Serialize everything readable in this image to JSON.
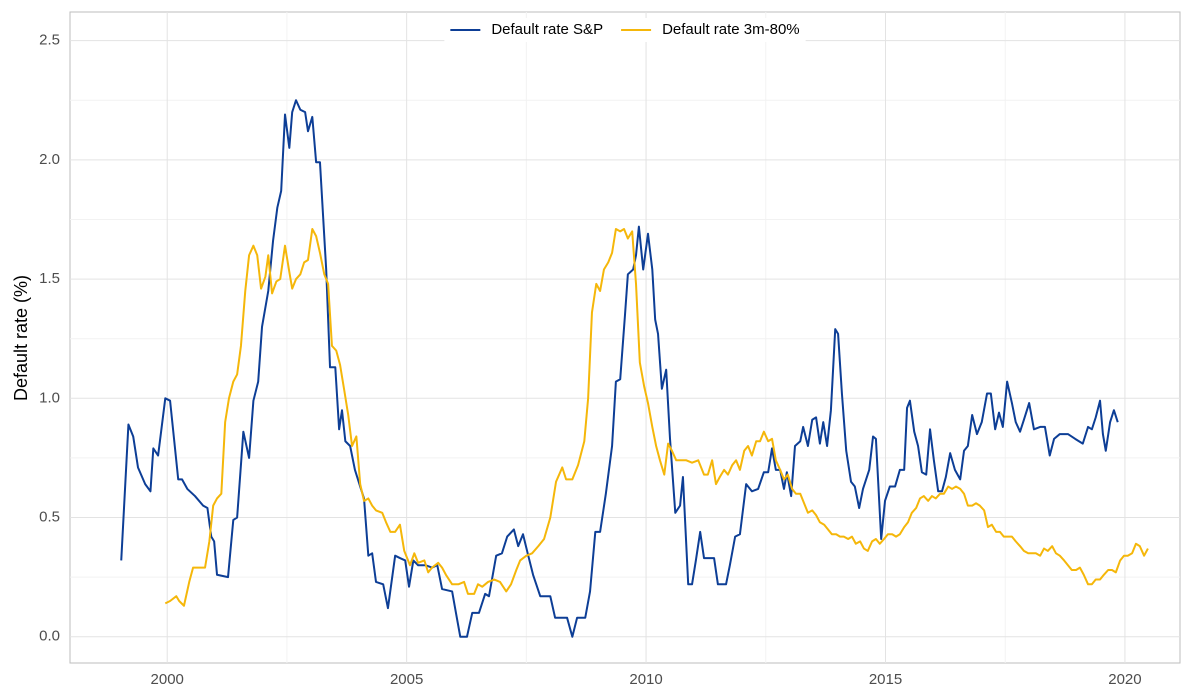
{
  "chart_data": {
    "type": "line",
    "y_label": "Default rate (%)",
    "xlim": [
      1997.97,
      2021.15
    ],
    "xticks": [
      2000,
      2005,
      2010,
      2015,
      2020
    ],
    "ylim": [
      -0.11,
      2.62
    ],
    "yticks": [
      0.0,
      0.5,
      1.0,
      1.5,
      2.0,
      2.5
    ],
    "y_tick_labels_fixed": 1,
    "grid": true,
    "legend": "top",
    "series": [
      {
        "name": "Default rate S&P",
        "color": "#0d3e96",
        "x": [
          1999.04,
          1999.19,
          1999.29,
          1999.39,
          1999.54,
          1999.65,
          1999.71,
          1999.81,
          1999.96,
          2000.06,
          2000.23,
          2000.31,
          2000.42,
          2000.58,
          2000.75,
          2000.84,
          2000.92,
          2000.98,
          2001.04,
          2001.27,
          2001.38,
          2001.46,
          2001.59,
          2001.71,
          2001.8,
          2001.9,
          2001.98,
          2002.11,
          2002.21,
          2002.3,
          2002.38,
          2002.46,
          2002.55,
          2002.61,
          2002.69,
          2002.78,
          2002.88,
          2002.94,
          2003.03,
          2003.11,
          2003.19,
          2003.32,
          2003.4,
          2003.51,
          2003.59,
          2003.65,
          2003.72,
          2003.82,
          2003.92,
          2004.03,
          2004.11,
          2004.2,
          2004.28,
          2004.36,
          2004.51,
          2004.61,
          2004.76,
          2004.86,
          2004.97,
          2005.05,
          2005.14,
          2005.24,
          2005.39,
          2005.53,
          2005.64,
          2005.74,
          2005.95,
          2006.03,
          2006.12,
          2006.26,
          2006.37,
          2006.51,
          2006.64,
          2006.72,
          2006.87,
          2006.99,
          2007.1,
          2007.24,
          2007.33,
          2007.43,
          2007.54,
          2007.64,
          2007.79,
          2008.0,
          2008.1,
          2008.35,
          2008.46,
          2008.56,
          2008.73,
          2008.83,
          2008.94,
          2009.04,
          2009.16,
          2009.29,
          2009.37,
          2009.46,
          2009.56,
          2009.62,
          2009.73,
          2009.79,
          2009.85,
          2009.94,
          2010.04,
          2010.13,
          2010.19,
          2010.25,
          2010.33,
          2010.42,
          2010.5,
          2010.61,
          2010.71,
          2010.77,
          2010.88,
          2010.96,
          2011.04,
          2011.13,
          2011.21,
          2011.42,
          2011.5,
          2011.67,
          2011.75,
          2011.86,
          2011.96,
          2012.09,
          2012.21,
          2012.34,
          2012.46,
          2012.55,
          2012.63,
          2012.71,
          2012.8,
          2012.88,
          2012.94,
          2013.03,
          2013.11,
          2013.22,
          2013.28,
          2013.38,
          2013.47,
          2013.55,
          2013.63,
          2013.7,
          2013.78,
          2013.86,
          2013.95,
          2014.01,
          2014.09,
          2014.18,
          2014.28,
          2014.36,
          2014.45,
          2014.53,
          2014.66,
          2014.74,
          2014.8,
          2014.91,
          2014.99,
          2015.09,
          2015.2,
          2015.3,
          2015.39,
          2015.45,
          2015.51,
          2015.6,
          2015.68,
          2015.76,
          2015.85,
          2015.93,
          2016.01,
          2016.1,
          2016.18,
          2016.26,
          2016.35,
          2016.45,
          2016.56,
          2016.64,
          2016.72,
          2016.81,
          2016.91,
          2017.01,
          2017.12,
          2017.2,
          2017.29,
          2017.37,
          2017.45,
          2017.54,
          2017.64,
          2017.72,
          2017.81,
          2017.89,
          2018.0,
          2018.1,
          2018.23,
          2018.33,
          2018.43,
          2018.52,
          2018.64,
          2018.81,
          2018.96,
          2019.12,
          2019.23,
          2019.31,
          2019.39,
          2019.48,
          2019.54,
          2019.6,
          2019.69,
          2019.77,
          2019.85
        ],
        "values": [
          0.32,
          0.89,
          0.84,
          0.71,
          0.64,
          0.61,
          0.79,
          0.76,
          1.0,
          0.99,
          0.66,
          0.66,
          0.62,
          0.59,
          0.55,
          0.54,
          0.42,
          0.4,
          0.26,
          0.25,
          0.49,
          0.5,
          0.86,
          0.75,
          0.99,
          1.07,
          1.3,
          1.45,
          1.66,
          1.8,
          1.87,
          2.19,
          2.05,
          2.2,
          2.25,
          2.21,
          2.2,
          2.12,
          2.18,
          1.99,
          1.99,
          1.54,
          1.13,
          1.13,
          0.87,
          0.95,
          0.82,
          0.8,
          0.7,
          0.63,
          0.58,
          0.34,
          0.35,
          0.23,
          0.22,
          0.12,
          0.34,
          0.33,
          0.32,
          0.21,
          0.32,
          0.3,
          0.3,
          0.29,
          0.3,
          0.2,
          0.19,
          0.1,
          0.0,
          0.0,
          0.1,
          0.1,
          0.18,
          0.17,
          0.34,
          0.35,
          0.42,
          0.45,
          0.38,
          0.43,
          0.34,
          0.26,
          0.17,
          0.17,
          0.08,
          0.08,
          0.0,
          0.08,
          0.08,
          0.19,
          0.44,
          0.44,
          0.6,
          0.8,
          1.07,
          1.08,
          1.35,
          1.52,
          1.54,
          1.6,
          1.72,
          1.54,
          1.69,
          1.54,
          1.33,
          1.27,
          1.04,
          1.12,
          0.83,
          0.52,
          0.55,
          0.67,
          0.22,
          0.22,
          0.32,
          0.44,
          0.33,
          0.33,
          0.22,
          0.22,
          0.3,
          0.42,
          0.43,
          0.64,
          0.61,
          0.62,
          0.69,
          0.69,
          0.79,
          0.7,
          0.7,
          0.62,
          0.69,
          0.59,
          0.8,
          0.82,
          0.88,
          0.8,
          0.91,
          0.92,
          0.81,
          0.9,
          0.8,
          0.95,
          1.29,
          1.27,
          1.02,
          0.78,
          0.65,
          0.63,
          0.54,
          0.62,
          0.7,
          0.84,
          0.83,
          0.41,
          0.57,
          0.63,
          0.63,
          0.7,
          0.7,
          0.96,
          0.99,
          0.86,
          0.8,
          0.69,
          0.68,
          0.87,
          0.74,
          0.61,
          0.61,
          0.67,
          0.77,
          0.7,
          0.66,
          0.78,
          0.8,
          0.93,
          0.85,
          0.9,
          1.02,
          1.02,
          0.87,
          0.94,
          0.88,
          1.07,
          0.98,
          0.9,
          0.86,
          0.91,
          0.98,
          0.87,
          0.88,
          0.88,
          0.76,
          0.83,
          0.85,
          0.85,
          0.83,
          0.81,
          0.88,
          0.87,
          0.92,
          0.99,
          0.85,
          0.78,
          0.9,
          0.95,
          0.9
        ]
      },
      {
        "name": "Default rate 3m-80%",
        "color": "#f5b70a",
        "x": [
          1999.96,
          2000.06,
          2000.19,
          2000.25,
          2000.35,
          2000.46,
          2000.54,
          2000.65,
          2000.79,
          2000.88,
          2000.96,
          2001.04,
          2001.13,
          2001.21,
          2001.29,
          2001.38,
          2001.46,
          2001.54,
          2001.63,
          2001.71,
          2001.8,
          2001.88,
          2001.96,
          2002.05,
          2002.11,
          2002.19,
          2002.28,
          2002.36,
          2002.46,
          2002.55,
          2002.61,
          2002.69,
          2002.78,
          2002.86,
          2002.94,
          2003.03,
          2003.11,
          2003.19,
          2003.28,
          2003.36,
          2003.44,
          2003.53,
          2003.61,
          2003.7,
          2003.78,
          2003.86,
          2003.95,
          2004.03,
          2004.11,
          2004.2,
          2004.28,
          2004.36,
          2004.49,
          2004.57,
          2004.66,
          2004.76,
          2004.86,
          2004.95,
          2005.07,
          2005.16,
          2005.24,
          2005.37,
          2005.45,
          2005.53,
          2005.66,
          2005.74,
          2005.82,
          2005.95,
          2006.08,
          2006.2,
          2006.28,
          2006.41,
          2006.49,
          2006.58,
          2006.7,
          2006.83,
          2006.95,
          2007.08,
          2007.18,
          2007.29,
          2007.37,
          2007.5,
          2007.62,
          2007.75,
          2007.87,
          2008.0,
          2008.12,
          2008.25,
          2008.33,
          2008.46,
          2008.58,
          2008.71,
          2008.79,
          2008.87,
          2008.96,
          2009.04,
          2009.12,
          2009.21,
          2009.29,
          2009.37,
          2009.46,
          2009.54,
          2009.62,
          2009.71,
          2009.79,
          2009.87,
          2009.96,
          2010.04,
          2010.13,
          2010.21,
          2010.29,
          2010.38,
          2010.46,
          2010.54,
          2010.63,
          2010.71,
          2010.84,
          2010.96,
          2011.09,
          2011.21,
          2011.29,
          2011.38,
          2011.46,
          2011.54,
          2011.63,
          2011.71,
          2011.8,
          2011.88,
          2011.96,
          2012.05,
          2012.13,
          2012.21,
          2012.3,
          2012.38,
          2012.46,
          2012.55,
          2012.63,
          2012.71,
          2012.8,
          2012.88,
          2012.96,
          2013.05,
          2013.13,
          2013.22,
          2013.3,
          2013.38,
          2013.47,
          2013.55,
          2013.63,
          2013.72,
          2013.8,
          2013.88,
          2013.97,
          2014.05,
          2014.13,
          2014.22,
          2014.3,
          2014.38,
          2014.47,
          2014.55,
          2014.63,
          2014.72,
          2014.8,
          2014.88,
          2014.97,
          2015.05,
          2015.14,
          2015.22,
          2015.3,
          2015.39,
          2015.47,
          2015.55,
          2015.64,
          2015.72,
          2015.8,
          2015.89,
          2015.97,
          2016.05,
          2016.14,
          2016.22,
          2016.31,
          2016.39,
          2016.47,
          2016.56,
          2016.64,
          2016.72,
          2016.81,
          2016.89,
          2016.97,
          2017.06,
          2017.14,
          2017.22,
          2017.31,
          2017.39,
          2017.47,
          2017.56,
          2017.64,
          2017.72,
          2017.81,
          2017.89,
          2017.98,
          2018.06,
          2018.14,
          2018.23,
          2018.31,
          2018.39,
          2018.48,
          2018.56,
          2018.64,
          2018.73,
          2018.81,
          2018.89,
          2018.98,
          2019.06,
          2019.14,
          2019.23,
          2019.31,
          2019.39,
          2019.48,
          2019.56,
          2019.65,
          2019.73,
          2019.81,
          2019.9,
          2019.98,
          2020.06,
          2020.15,
          2020.23,
          2020.31,
          2020.4,
          2020.48
        ],
        "values": [
          0.14,
          0.15,
          0.17,
          0.15,
          0.13,
          0.23,
          0.29,
          0.29,
          0.29,
          0.4,
          0.55,
          0.58,
          0.6,
          0.9,
          1.0,
          1.07,
          1.1,
          1.22,
          1.45,
          1.6,
          1.64,
          1.6,
          1.46,
          1.51,
          1.6,
          1.44,
          1.49,
          1.5,
          1.64,
          1.53,
          1.46,
          1.5,
          1.52,
          1.57,
          1.58,
          1.71,
          1.68,
          1.61,
          1.52,
          1.48,
          1.22,
          1.2,
          1.14,
          1.03,
          0.93,
          0.8,
          0.84,
          0.64,
          0.57,
          0.58,
          0.55,
          0.53,
          0.52,
          0.48,
          0.44,
          0.44,
          0.47,
          0.36,
          0.3,
          0.35,
          0.31,
          0.32,
          0.27,
          0.29,
          0.31,
          0.29,
          0.26,
          0.22,
          0.22,
          0.23,
          0.18,
          0.18,
          0.22,
          0.21,
          0.23,
          0.24,
          0.23,
          0.19,
          0.22,
          0.28,
          0.32,
          0.34,
          0.35,
          0.38,
          0.41,
          0.5,
          0.65,
          0.71,
          0.66,
          0.66,
          0.72,
          0.82,
          1.0,
          1.36,
          1.48,
          1.45,
          1.54,
          1.57,
          1.61,
          1.71,
          1.7,
          1.71,
          1.67,
          1.7,
          1.48,
          1.15,
          1.05,
          0.98,
          0.88,
          0.8,
          0.74,
          0.68,
          0.81,
          0.78,
          0.74,
          0.74,
          0.74,
          0.73,
          0.74,
          0.68,
          0.68,
          0.74,
          0.64,
          0.67,
          0.7,
          0.68,
          0.72,
          0.74,
          0.7,
          0.78,
          0.8,
          0.76,
          0.82,
          0.82,
          0.86,
          0.82,
          0.83,
          0.74,
          0.7,
          0.66,
          0.68,
          0.62,
          0.6,
          0.6,
          0.56,
          0.52,
          0.53,
          0.51,
          0.48,
          0.47,
          0.45,
          0.43,
          0.43,
          0.42,
          0.42,
          0.41,
          0.42,
          0.39,
          0.4,
          0.37,
          0.36,
          0.4,
          0.41,
          0.39,
          0.41,
          0.43,
          0.43,
          0.42,
          0.43,
          0.46,
          0.48,
          0.52,
          0.54,
          0.58,
          0.59,
          0.57,
          0.59,
          0.58,
          0.6,
          0.6,
          0.63,
          0.62,
          0.63,
          0.62,
          0.6,
          0.55,
          0.55,
          0.56,
          0.55,
          0.53,
          0.46,
          0.47,
          0.44,
          0.44,
          0.42,
          0.42,
          0.42,
          0.4,
          0.38,
          0.36,
          0.35,
          0.35,
          0.35,
          0.34,
          0.37,
          0.36,
          0.38,
          0.35,
          0.34,
          0.32,
          0.3,
          0.28,
          0.28,
          0.29,
          0.26,
          0.22,
          0.22,
          0.24,
          0.24,
          0.26,
          0.28,
          0.28,
          0.27,
          0.32,
          0.34,
          0.34,
          0.35,
          0.39,
          0.38,
          0.34,
          0.37
        ]
      }
    ]
  }
}
